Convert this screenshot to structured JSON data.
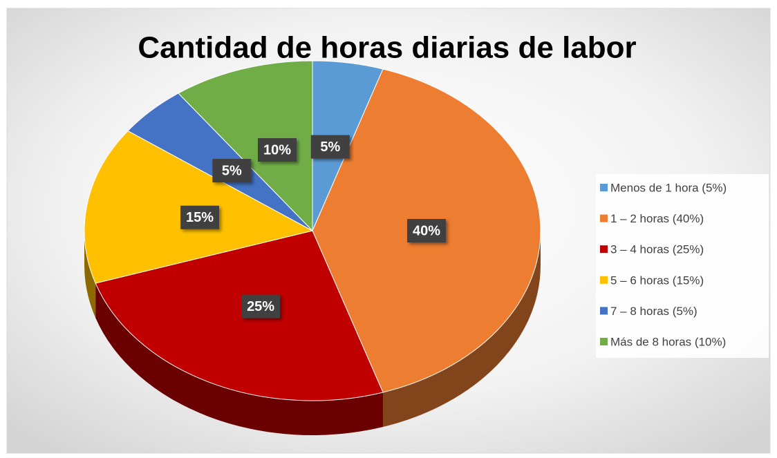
{
  "chart_data": {
    "type": "pie",
    "title": "Cantidad de horas diarias de labor",
    "categories": [
      "Menos de 1 hora (5%)",
      "1 – 2 horas (40%)",
      "3 – 4 horas (25%)",
      "5 – 6 horas (15%)",
      "7 – 8 horas (5%)",
      "Más de 8 horas (10%)"
    ],
    "values": [
      5,
      40,
      25,
      15,
      5,
      10
    ],
    "value_labels": [
      "5%",
      "40%",
      "25%",
      "15%",
      "5%",
      "10%"
    ],
    "colors": [
      "#5b9bd5",
      "#ed7d31",
      "#c00000",
      "#ffc000",
      "#4472c4",
      "#70ad47"
    ],
    "legend": "right"
  }
}
